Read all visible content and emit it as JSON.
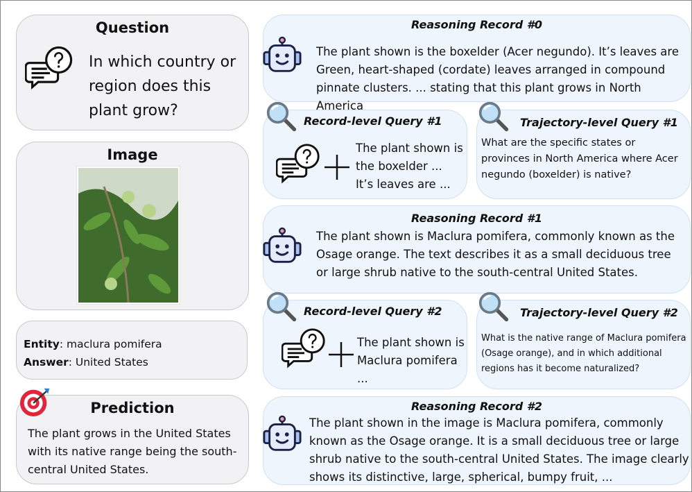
{
  "question": {
    "title": "Question",
    "text": "In which country or region does this plant grow?"
  },
  "image": {
    "title": "Image"
  },
  "info": {
    "entity_label": "Entity",
    "entity_value": ": maclura pomifera",
    "answer_label": "Answer",
    "answer_value": ": United States"
  },
  "prediction": {
    "title": "Prediction",
    "text": "The plant grows in the United States with its native range being the south-central United States."
  },
  "records": [
    {
      "title": "Reasoning Record #0",
      "text": "The plant shown is the boxelder (Acer negundo). It’s leaves are Green, heart-shaped (cordate) leaves arranged in compound pinnate clusters. ... stating that this plant grows in North America"
    },
    {
      "title": "Reasoning Record #1",
      "text": "The plant shown is Maclura pomifera, commonly known as the Osage orange. The text describes it as a small deciduous tree or large shrub native to the south-central United States."
    },
    {
      "title": "Reasoning Record #2",
      "text": "The plant shown in the image is Maclura pomifera, commonly known as the Osage orange. It is a small deciduous tree or large shrub native to the south-central United States. The image clearly shows its distinctive, large, spherical, bumpy fruit, ..."
    }
  ],
  "record_queries": [
    {
      "title": "Record-level Query #1",
      "text": "The plant shown is the boxelder ... It’s leaves are ..."
    },
    {
      "title": "Record-level Query #2",
      "text": "The plant shown is Maclura pomifera ..."
    }
  ],
  "trajectory_queries": [
    {
      "title": "Trajectory-level Query #1",
      "text": "What are the specific states or provinces in North America where Acer negundo (boxelder) is native?"
    },
    {
      "title": "Trajectory-level Query #2",
      "text": "What is the native range of Maclura pomifera (Osage orange), and in which additional regions has it become naturalized?"
    }
  ]
}
